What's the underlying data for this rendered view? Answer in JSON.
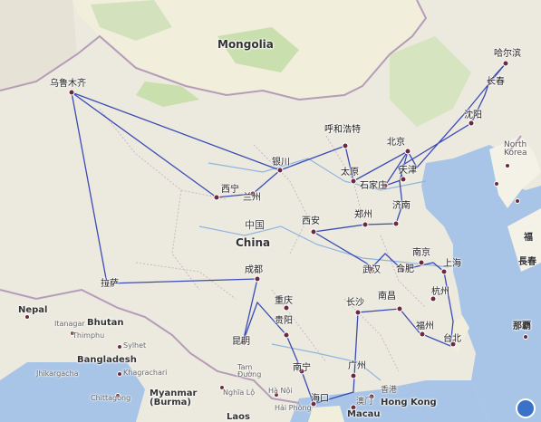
{
  "map": {
    "countries": {
      "mongolia": "Mongolia",
      "china": "China",
      "china_cn": "中国",
      "nepal": "Nepal",
      "bhutan": "Bhutan",
      "bangladesh": "Bangladesh",
      "myanmar": "Myanmar\n(Burma)",
      "laos": "Laos",
      "north_korea": "North\nKorea"
    },
    "cities": {
      "urumqi": "乌鲁木齐",
      "harbin": "哈尔滨",
      "changchun": "长春",
      "shenyang": "沈阳",
      "hohhot": "呼和浩特",
      "beijing": "北京",
      "tianjin": "天津",
      "taiyuan": "太原",
      "shijiazhuang": "石家庄",
      "yinchuan": "银川",
      "xining": "西宁",
      "lanzhou": "兰州",
      "jinan": "济南",
      "zhengzhou": "郑州",
      "xian": "西安",
      "nanjing": "南京",
      "hefei": "合肥",
      "wuhan": "武汉",
      "shanghai": "上海",
      "hangzhou": "杭州",
      "chengdu": "成都",
      "chongqing": "重庆",
      "lhasa": "拉萨",
      "changsha": "长沙",
      "nanchang": "南昌",
      "guiyang": "贵阳",
      "kunming": "昆明",
      "fuzhou": "福州",
      "taipei": "台北",
      "guangzhou": "广州",
      "nanning": "南宁",
      "haikou": "海口",
      "hongkong_cn": "香港",
      "hongkong": "Hong Kong",
      "macau": "Macau",
      "macau_cn": "澳门"
    },
    "minor": {
      "itanagar": "Itanagar",
      "hanoi": "Hà Nội",
      "nghia_lo": "Nghĩa Lộ",
      "hai_phong": "Hải Phòng",
      "thimphu": "Thimphu",
      "sylhet": "Sylhet",
      "khagrachari": "Khagrachari",
      "chittagong": "Chittagong",
      "jhikargacha": "Jhikargacha",
      "tam_duong": "Tam\nĐường"
    },
    "edge_labels": {
      "naha_cn": "那覇",
      "fu": "福",
      "chang": "長春"
    }
  }
}
